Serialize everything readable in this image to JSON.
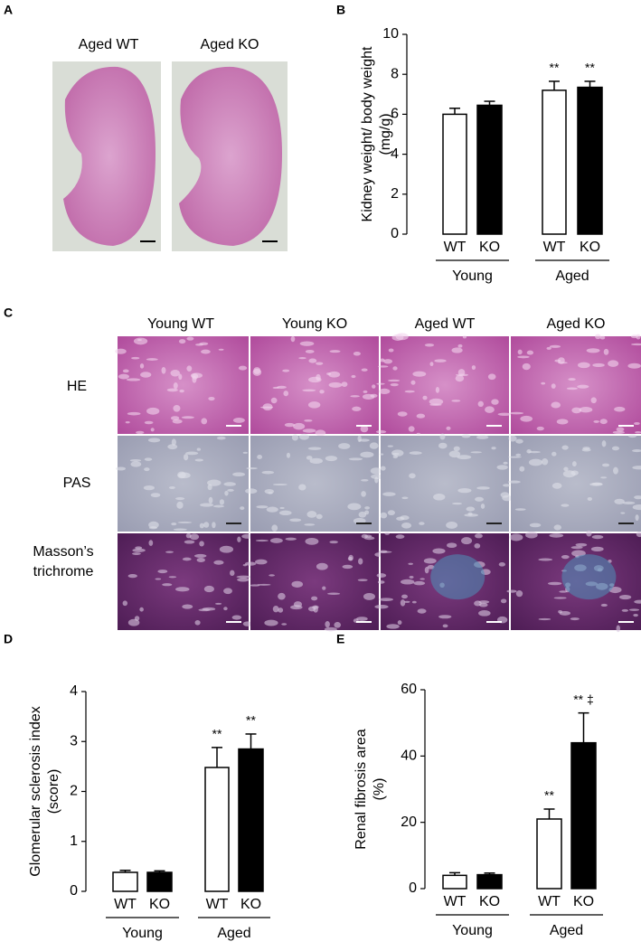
{
  "panel_labels": [
    "A",
    "B",
    "C",
    "D",
    "E"
  ],
  "panel_a": {
    "columns": [
      "Aged WT",
      "Aged KO"
    ]
  },
  "panel_c": {
    "columns": [
      "Young WT",
      "Young KO",
      "Aged WT",
      "Aged KO"
    ],
    "rows": [
      "HE",
      "PAS",
      "Masson’s trichrome"
    ]
  },
  "chart_data": [
    {
      "type": "bar",
      "ylabel": [
        "Kidney weight/ body weight",
        "(mg/g)"
      ],
      "categories": [
        "WT",
        "KO",
        "WT",
        "KO"
      ],
      "groups": [
        "Young",
        "Aged"
      ],
      "values": [
        6.0,
        6.45,
        7.2,
        7.35
      ],
      "errors": [
        0.3,
        0.2,
        0.45,
        0.3
      ],
      "annotations": [
        null,
        null,
        "**",
        "**"
      ],
      "colors": [
        "#ffffff",
        "#000000",
        "#ffffff",
        "#000000"
      ],
      "ylim": [
        0,
        10
      ],
      "yticks": [
        0,
        2,
        4,
        6,
        8,
        10
      ]
    },
    {
      "type": "bar",
      "ylabel": [
        "Glomerular sclerosis index",
        "(score)"
      ],
      "categories": [
        "WT",
        "KO",
        "WT",
        "KO"
      ],
      "groups": [
        "Young",
        "Aged"
      ],
      "values": [
        0.38,
        0.38,
        2.48,
        2.85
      ],
      "errors": [
        0.04,
        0.03,
        0.4,
        0.3
      ],
      "annotations": [
        null,
        null,
        "**",
        "**"
      ],
      "colors": [
        "#ffffff",
        "#000000",
        "#ffffff",
        "#000000"
      ],
      "ylim": [
        0,
        4
      ],
      "yticks": [
        0,
        1,
        2,
        3,
        4
      ]
    },
    {
      "type": "bar",
      "ylabel": [
        "Renal fibrosis area",
        "(%)"
      ],
      "categories": [
        "WT",
        "KO",
        "WT",
        "KO"
      ],
      "groups": [
        "Young",
        "Aged"
      ],
      "values": [
        4.0,
        4.2,
        21,
        44
      ],
      "errors": [
        0.8,
        0.5,
        3,
        9
      ],
      "annotations": [
        null,
        null,
        "**",
        "** ‡"
      ],
      "colors": [
        "#ffffff",
        "#000000",
        "#ffffff",
        "#000000"
      ],
      "ylim": [
        0,
        60
      ],
      "yticks": [
        0,
        20,
        40,
        60
      ]
    }
  ]
}
